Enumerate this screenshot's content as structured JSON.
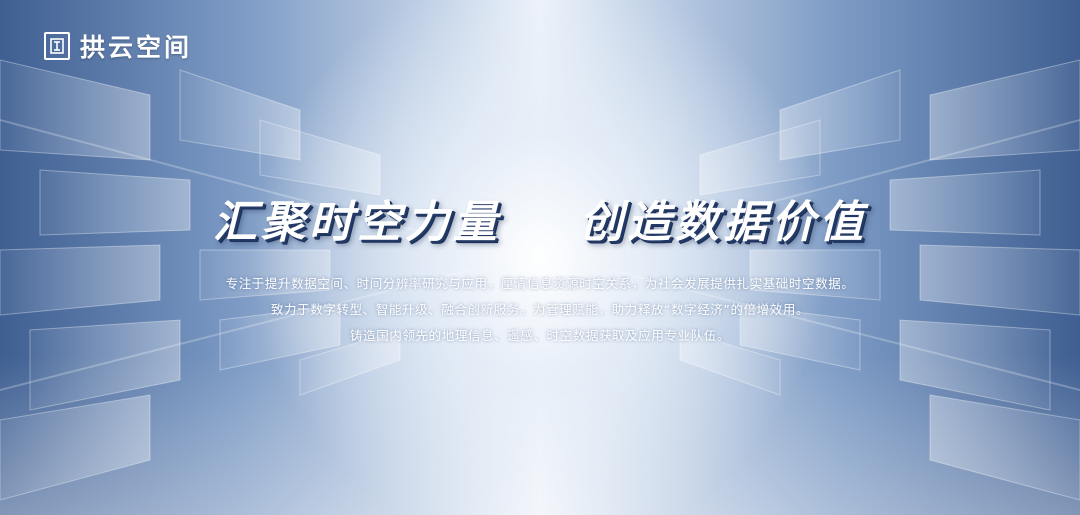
{
  "logo": {
    "seal_icon": "seal-stamp-icon",
    "name": "拱云空间"
  },
  "headline": {
    "left": "汇聚时空力量",
    "right": "创造数据价值"
  },
  "description": {
    "line1": "专注于提升数据空间、时间分辨率研究与应用，厘清信息资源时空关系，为社会发展提供扎实基础时空数据。",
    "line2": "致力于数字转型、智能升级、融合创新服务。为管理赋能，助力释放“数字经济”的倍增效用。",
    "line3": "铸造国内领先的地理信息、遥感、时空数据获取及应用专业队伍。"
  },
  "colors": {
    "background_dark": "#3f5f92",
    "background_light": "#eef3fa",
    "text": "#ffffff",
    "headline_shadow": "#233a66"
  }
}
